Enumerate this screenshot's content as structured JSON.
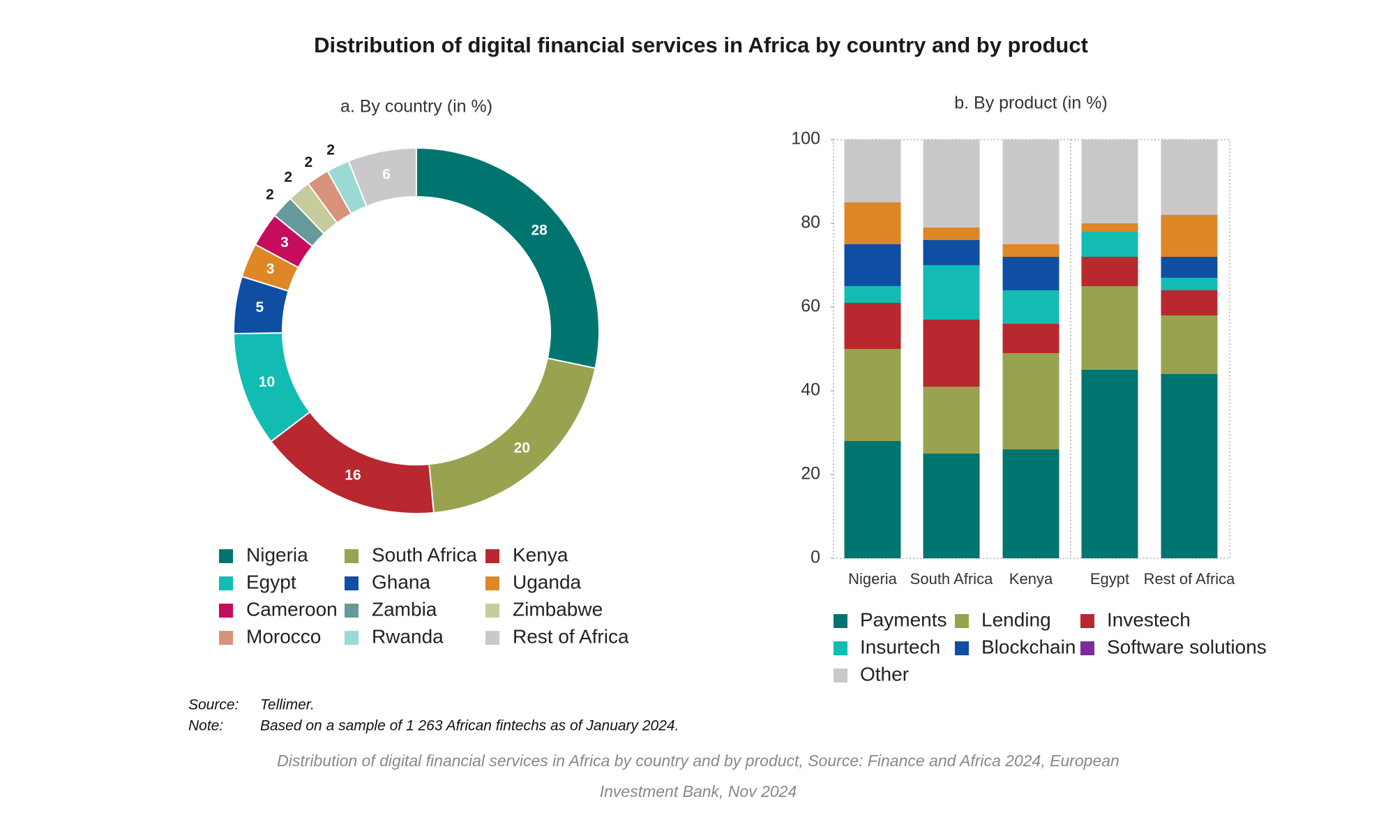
{
  "title": "Distribution of digital financial services in Africa by country and by product",
  "chart_data": [
    {
      "type": "donut",
      "title": "a. By country (in %)",
      "categories": [
        "Nigeria",
        "South Africa",
        "Kenya",
        "Egypt",
        "Ghana",
        "Uganda",
        "Cameroon",
        "Zambia",
        "Zimbabwe",
        "Morocco",
        "Rwanda",
        "Rest of Africa"
      ],
      "values": [
        28,
        20,
        16,
        10,
        5,
        3,
        3,
        2,
        2,
        2,
        2,
        6
      ],
      "colors": [
        "#007570",
        "#99a24f",
        "#b8282e",
        "#12bcb2",
        "#0f4ea2",
        "#dd8727",
        "#c50c5d",
        "#679a9a",
        "#c7cc9c",
        "#d9927b",
        "#9bd9d4",
        "#c9c9cb"
      ]
    },
    {
      "type": "stacked_bar",
      "title": "b. By product (in %)",
      "categories": [
        "Nigeria",
        "South Africa",
        "Kenya",
        "Egypt",
        "Rest of Africa"
      ],
      "series": [
        {
          "name": "Payments",
          "color": "#007570",
          "values": [
            28,
            25,
            26,
            45,
            44
          ]
        },
        {
          "name": "Lending",
          "color": "#99a24f",
          "values": [
            22,
            16,
            23,
            20,
            14
          ]
        },
        {
          "name": "Investech",
          "color": "#b8282e",
          "values": [
            11,
            16,
            7,
            7,
            6
          ]
        },
        {
          "name": "Insurtech",
          "color": "#12bcb2",
          "values": [
            4,
            13,
            8,
            6,
            3
          ]
        },
        {
          "name": "Blockchain",
          "color": "#0f4ea2",
          "values": [
            10,
            6,
            8,
            0,
            5
          ]
        },
        {
          "name": "Software solutions",
          "color": "#dd8727",
          "legend_color": "#7a2d9b",
          "values": [
            10,
            3,
            3,
            2,
            10
          ]
        },
        {
          "name": "Other",
          "color": "#c9c9cb",
          "values": [
            15,
            21,
            25,
            20,
            18
          ]
        }
      ],
      "ylim": [
        0,
        100
      ],
      "yticks": [
        0,
        20,
        40,
        60,
        80,
        100
      ]
    }
  ],
  "source": {
    "label": "Source:",
    "text": "Tellimer."
  },
  "note": {
    "label": "Note:",
    "text": "Based on a sample of 1 263 African fintechs as of January 2024."
  },
  "caption": [
    "Distribution of digital financial services in Africa by country and by product, Source: Finance and Africa 2024, European",
    "Investment Bank, Nov 2024"
  ]
}
